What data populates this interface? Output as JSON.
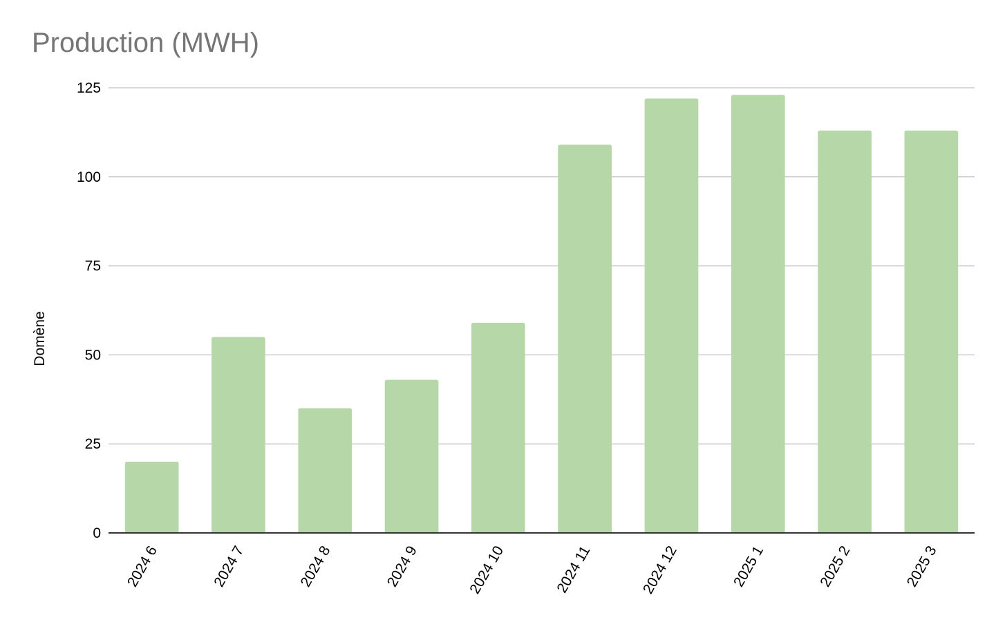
{
  "chart_data": {
    "type": "bar",
    "title": "Production (MWH)",
    "xlabel": "",
    "ylabel": "Domène",
    "categories": [
      "2024 6",
      "2024 7",
      "2024 8",
      "2024 9",
      "2024 10",
      "2024 11",
      "2024 12",
      "2025 1",
      "2025 2",
      "2025 3"
    ],
    "values": [
      20,
      55,
      35,
      43,
      59,
      109,
      122,
      123,
      113,
      113
    ],
    "ylim": [
      0,
      125
    ],
    "yticks": [
      0,
      25,
      50,
      75,
      100,
      125
    ],
    "grid": true,
    "legend": "none",
    "colors": {
      "bar": "#b6d7a8",
      "grid": "#cccccc",
      "baseline": "#333333",
      "title": "#757575"
    }
  }
}
